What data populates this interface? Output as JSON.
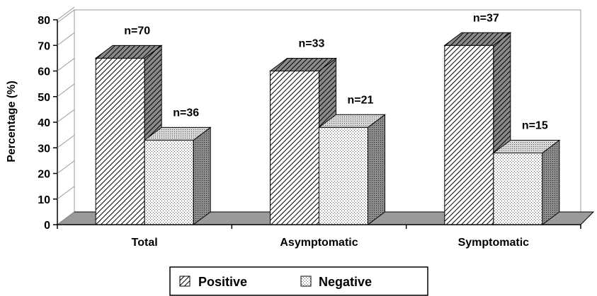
{
  "chart_data": {
    "type": "bar",
    "title": "",
    "xlabel": "",
    "ylabel": "Percentage (%)",
    "ylim": [
      0,
      80
    ],
    "yticks": [
      0,
      10,
      20,
      30,
      40,
      50,
      60,
      70,
      80
    ],
    "categories": [
      "Total",
      "Asymptomatic",
      "Symptomatic"
    ],
    "series": [
      {
        "name": "Positive",
        "values": [
          65,
          60,
          70
        ],
        "labels": [
          "n=70",
          "n=33",
          "n=37"
        ],
        "pattern": "diagonal-hatch"
      },
      {
        "name": "Negative",
        "values": [
          33,
          38,
          28
        ],
        "labels": [
          "n=36",
          "n=21",
          "n=15"
        ],
        "pattern": "dotted"
      }
    ],
    "legend_position": "bottom",
    "grid": false,
    "style": "3d"
  }
}
